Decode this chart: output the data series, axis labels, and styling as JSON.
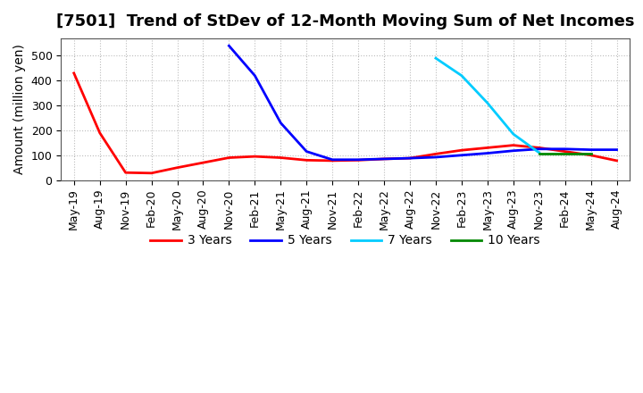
{
  "title": "[7501]  Trend of StDev of 12-Month Moving Sum of Net Incomes",
  "ylabel": "Amount (million yen)",
  "background_color": "#ffffff",
  "grid_color": "#aaaaaa",
  "title_fontsize": 13,
  "label_fontsize": 10,
  "tick_fontsize": 9,
  "series": {
    "3 Years": {
      "color": "#ff0000",
      "dates": [
        "May-19",
        "Aug-19",
        "Nov-19",
        "Feb-20",
        "May-20",
        "Aug-20",
        "Nov-20",
        "Feb-21",
        "May-21",
        "Aug-21",
        "Nov-21",
        "Feb-22",
        "May-22",
        "Aug-22",
        "Nov-22",
        "Feb-23",
        "May-23",
        "Aug-23",
        "Nov-23",
        "Feb-24",
        "May-24",
        "Aug-24"
      ],
      "values": [
        430,
        190,
        30,
        28,
        50,
        70,
        90,
        95,
        90,
        80,
        78,
        80,
        85,
        88,
        105,
        120,
        130,
        140,
        130,
        115,
        100,
        78
      ]
    },
    "5 Years": {
      "color": "#0000ff",
      "dates": [
        "Nov-20",
        "Feb-21",
        "May-21",
        "Aug-21",
        "Nov-21",
        "Feb-22",
        "May-22",
        "Aug-22",
        "Nov-22",
        "Feb-23",
        "May-23",
        "Aug-23",
        "Nov-23",
        "Feb-24",
        "May-24",
        "Aug-24"
      ],
      "values": [
        540,
        420,
        230,
        115,
        82,
        82,
        85,
        88,
        92,
        100,
        108,
        118,
        125,
        125,
        122,
        122
      ]
    },
    "7 Years": {
      "color": "#00ccff",
      "dates": [
        "Nov-22",
        "Feb-23",
        "May-23",
        "Aug-23",
        "Nov-23"
      ],
      "values": [
        490,
        420,
        310,
        185,
        110
      ]
    },
    "10 Years": {
      "color": "#008800",
      "dates": [
        "Nov-23",
        "Feb-24",
        "May-24"
      ],
      "values": [
        105,
        105,
        105
      ]
    }
  },
  "xtick_labels": [
    "May-19",
    "Aug-19",
    "Nov-19",
    "Feb-20",
    "May-20",
    "Aug-20",
    "Nov-20",
    "Feb-21",
    "May-21",
    "Aug-21",
    "Nov-21",
    "Feb-22",
    "May-22",
    "Aug-22",
    "Nov-22",
    "Feb-23",
    "May-23",
    "Aug-23",
    "Nov-23",
    "Feb-24",
    "May-24",
    "Aug-24"
  ],
  "ylim": [
    0,
    570
  ],
  "yticks": [
    0,
    100,
    200,
    300,
    400,
    500
  ],
  "legend_labels": [
    "3 Years",
    "5 Years",
    "7 Years",
    "10 Years"
  ],
  "legend_colors": [
    "#ff0000",
    "#0000ff",
    "#00ccff",
    "#008800"
  ]
}
